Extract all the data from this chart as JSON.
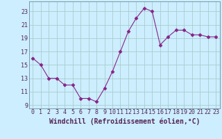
{
  "x": [
    0,
    1,
    2,
    3,
    4,
    5,
    6,
    7,
    8,
    9,
    10,
    11,
    12,
    13,
    14,
    15,
    16,
    17,
    18,
    19,
    20,
    21,
    22,
    23
  ],
  "y": [
    16,
    15,
    13,
    13,
    12,
    12,
    10,
    10,
    9.5,
    11.5,
    14,
    17,
    20,
    22,
    23.5,
    23,
    18,
    19.2,
    20.2,
    20.2,
    19.5,
    19.5,
    19.2,
    19.2
  ],
  "line_color": "#882288",
  "marker": "D",
  "marker_size": 2.5,
  "bg_color": "#cceeff",
  "grid_color": "#aacccc",
  "xlabel": "Windchill (Refroidissement éolien,°C)",
  "xlabel_fontsize": 7,
  "yticks": [
    9,
    11,
    13,
    15,
    17,
    19,
    21,
    23
  ],
  "xticks": [
    0,
    1,
    2,
    3,
    4,
    5,
    6,
    7,
    8,
    9,
    10,
    11,
    12,
    13,
    14,
    15,
    16,
    17,
    18,
    19,
    20,
    21,
    22,
    23
  ],
  "ylim": [
    8.5,
    24.5
  ],
  "xlim": [
    -0.5,
    23.5
  ],
  "tick_fontsize": 6,
  "spine_color": "#7799aa"
}
